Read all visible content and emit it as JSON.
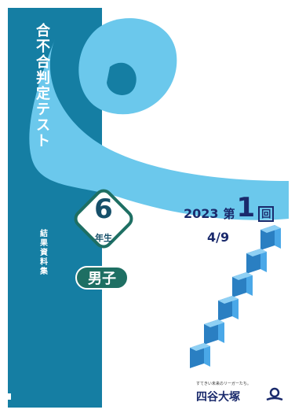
{
  "test": {
    "title": [
      "合",
      "不",
      "合",
      "判",
      "定",
      "テ",
      "ス",
      "ト"
    ],
    "subtitle": [
      "結",
      "果",
      "資",
      "料",
      "集"
    ],
    "grade_number": "6",
    "grade_label": "年生",
    "gender": "男子",
    "year": "2023",
    "round_prefix": "第",
    "round_number": "1",
    "round_suffix": "回",
    "date": "4/9"
  },
  "publisher": {
    "tagline": "すてきい未来のリーガーたち。",
    "name": "四谷大塚",
    "logo_icon": "yotsuya-otsuka-logo-icon"
  },
  "colors": {
    "band": "#157ea3",
    "light_blue": "#6bc8ec",
    "dark_navy": "#1a2a6c",
    "green": "#1e6f63",
    "step_blue": "#3a9ad9"
  }
}
